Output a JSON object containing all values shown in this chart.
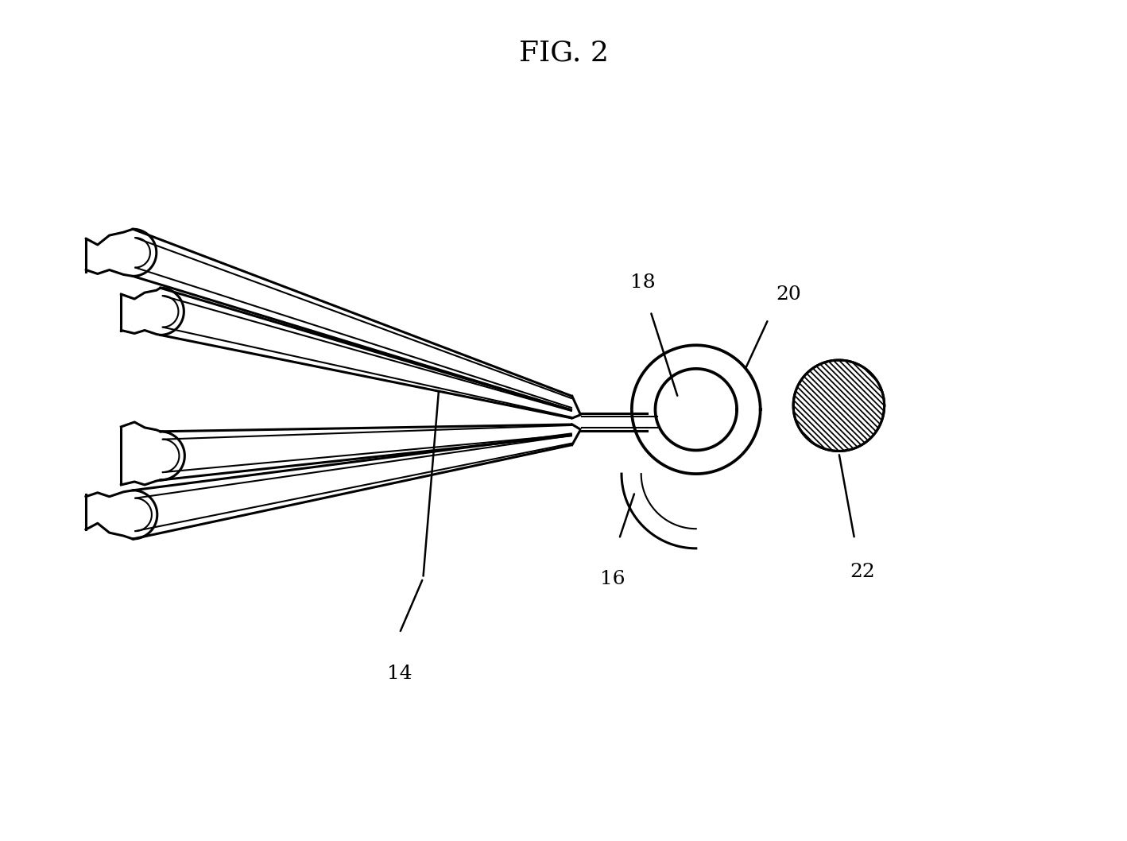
{
  "title": "FIG. 2",
  "background_color": "#ffffff",
  "line_color": "#000000",
  "title_fontsize": 26,
  "label_fontsize": 18,
  "lw_main": 2.2,
  "lw_thin": 1.5,
  "fig_w": 14.18,
  "fig_h": 10.58,
  "dpi": 100
}
